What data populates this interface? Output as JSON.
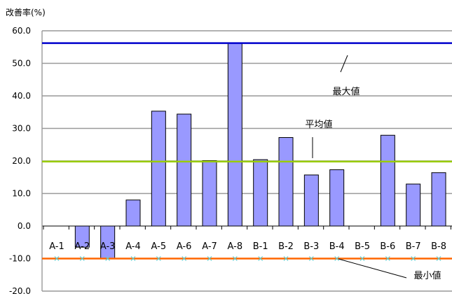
{
  "chart_data": {
    "type": "bar",
    "ylabel": "改善率(%)",
    "ylim": [
      -20,
      60
    ],
    "yticks": [
      "60.0",
      "50.0",
      "40.0",
      "30.0",
      "20.0",
      "10.0",
      "0.0",
      "-10.0",
      "-20.0"
    ],
    "categories": [
      "A-1",
      "A-2",
      "A-3",
      "A-4",
      "A-5",
      "A-6",
      "A-7",
      "A-8",
      "B-1",
      "B-2",
      "B-3",
      "B-4",
      "B-5",
      "B-6",
      "B-7",
      "B-8"
    ],
    "values": [
      null,
      -6.5,
      -10.0,
      8.0,
      35.3,
      34.4,
      20.1,
      56.2,
      20.4,
      27.2,
      15.7,
      17.3,
      null,
      27.9,
      12.9,
      16.4
    ],
    "bar_color": "#9999ff",
    "reference_lines": [
      {
        "label": "最大値",
        "value": 56.2,
        "color": "#0000cc"
      },
      {
        "label": "平均値",
        "value": 19.8,
        "color": "#99cc00"
      },
      {
        "label": "最小値",
        "value": -10.0,
        "color": "#ff6600"
      }
    ],
    "marker_color": "#66cccc",
    "grid": true
  }
}
